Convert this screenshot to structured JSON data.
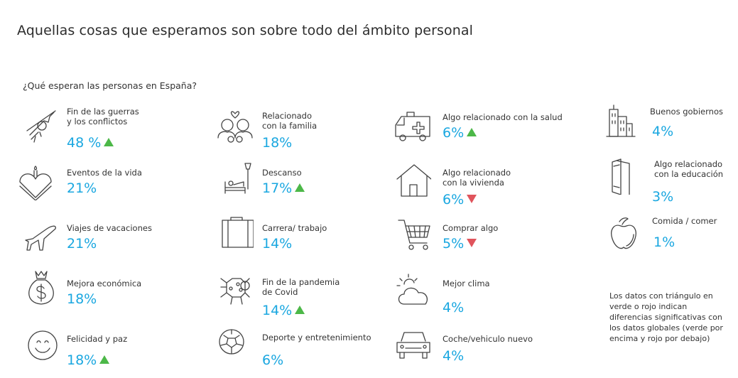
{
  "title": "Aquellas cosas que esperamos son sobre todo del ámbito personal",
  "subtitle": "¿Qué esperan las personas en España?",
  "colors": {
    "value": "#1aa7e0",
    "up": "#4cb848",
    "down": "#e0545c"
  },
  "items": [
    {
      "icon": "no-weapon-icon",
      "label": "Fin de las guerras\ny los conflictos",
      "value": "48 %",
      "trend": "up"
    },
    {
      "icon": "birthday-cake-icon",
      "label": "Eventos de la vida",
      "value": "21%",
      "trend": ""
    },
    {
      "icon": "airplane-icon",
      "label": "Viajes de vacaciones",
      "value": "21%",
      "trend": ""
    },
    {
      "icon": "money-bag-icon",
      "label": "Mejora económica",
      "value": "18%",
      "trend": ""
    },
    {
      "icon": "smiley-icon",
      "label": "Felicidad y paz",
      "value": "18%",
      "trend": "up"
    },
    {
      "icon": "family-icon",
      "label": "Relacionado\ncon la familia",
      "value": "18%",
      "trend": ""
    },
    {
      "icon": "bed-icon",
      "label": "Descanso",
      "value": "17%",
      "trend": "up"
    },
    {
      "icon": "briefcase-icon",
      "label": "Carrera/ trabajo",
      "value": "14%",
      "trend": ""
    },
    {
      "icon": "virus-icon",
      "label": "Fin de la pandemia\nde Covid",
      "value": "14%",
      "trend": "up"
    },
    {
      "icon": "soccer-ball-icon",
      "label": "Deporte y entretenimiento",
      "value": "6%",
      "trend": ""
    },
    {
      "icon": "ambulance-icon",
      "label": "Algo relacionado con la salud",
      "value": "6%",
      "trend": "up"
    },
    {
      "icon": "house-icon",
      "label": "Algo relacionado\ncon la vivienda",
      "value": "6%",
      "trend": "down"
    },
    {
      "icon": "shopping-cart-icon",
      "label": "Comprar algo",
      "value": "5%",
      "trend": "down"
    },
    {
      "icon": "sun-cloud-icon",
      "label": "Mejor clima",
      "value": "4%",
      "trend": ""
    },
    {
      "icon": "car-icon",
      "label": "Coche/vehiculo nuevo",
      "value": "4%",
      "trend": ""
    },
    {
      "icon": "city-buildings-icon",
      "label": "Buenos gobiernos",
      "value": "4%",
      "trend": ""
    },
    {
      "icon": "book-icon",
      "label": "Algo relacionado\ncon la educación",
      "value": "3%",
      "trend": ""
    },
    {
      "icon": "apple-icon",
      "label": "Comida / comer",
      "value": "1%",
      "trend": ""
    }
  ],
  "note": "Los datos con triángulo en verde o rojo indican diferencias significativas con los datos globales (verde por encima y rojo por debajo)"
}
